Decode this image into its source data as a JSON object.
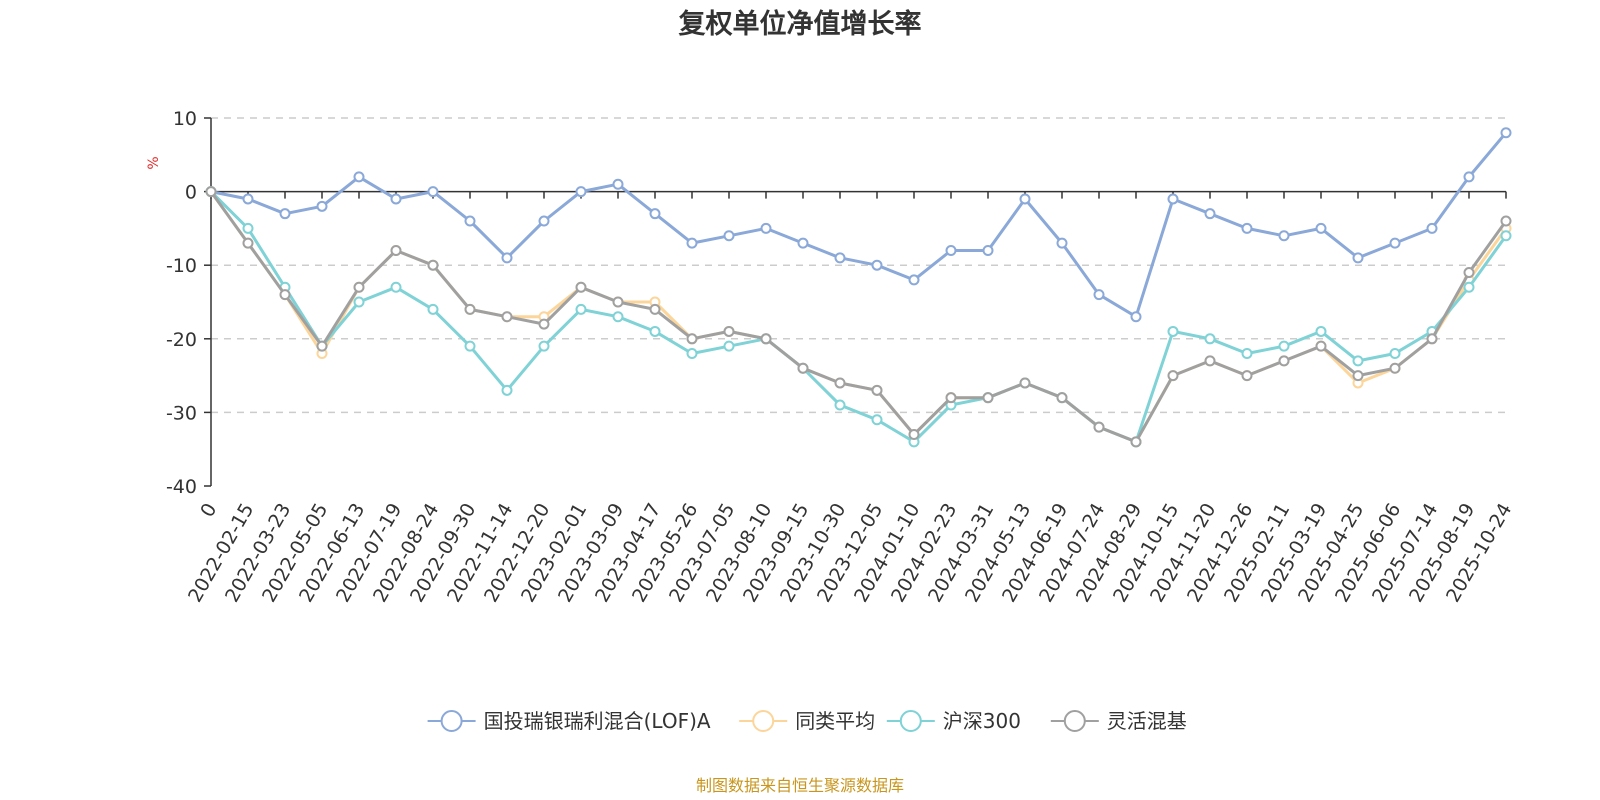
{
  "chart_data": {
    "type": "line",
    "title": "复权单位净值增长率",
    "ylabel": "%",
    "ylim": [
      -40,
      10
    ],
    "yticks": [
      10,
      0,
      -10,
      -20,
      -30,
      -40
    ],
    "xlabels": [
      "0",
      "2022-02-15",
      "2022-03-23",
      "2022-05-05",
      "2022-06-13",
      "2022-07-19",
      "2022-08-24",
      "2022-09-30",
      "2022-11-14",
      "2022-12-20",
      "2023-02-01",
      "2023-03-09",
      "2023-04-17",
      "2023-05-26",
      "2023-07-05",
      "2023-08-10",
      "2023-09-15",
      "2023-10-30",
      "2023-12-05",
      "2024-01-10",
      "2024-02-23",
      "2024-03-31",
      "2024-05-13",
      "2024-06-19",
      "2024-07-24",
      "2024-08-29",
      "2024-10-15",
      "2024-11-20",
      "2024-12-26",
      "2025-02-11",
      "2025-03-19",
      "2025-04-25",
      "2025-06-06",
      "2025-07-14",
      "2025-08-19",
      "2025-10-24"
    ],
    "grid": true,
    "legend_position": "bottom",
    "series": [
      {
        "name": "国投瑞银瑞利混合(LOF)A",
        "color": "#8aa8d8",
        "values": [
          0,
          -1,
          -3,
          -2,
          2,
          -1,
          0,
          -4,
          -9,
          -4,
          0,
          1,
          -3,
          -7,
          -6,
          -5,
          -7,
          -9,
          -10,
          -12,
          -8,
          -8,
          -1,
          -7,
          -14,
          -17,
          -1,
          -3,
          -5,
          -6,
          -5,
          -9,
          -7,
          -5,
          2,
          8
        ]
      },
      {
        "name": "同类平均",
        "color": "#fcd59a",
        "values": [
          0,
          -7,
          -14,
          -22,
          -13,
          -8,
          -10,
          -16,
          -17,
          -17,
          -13,
          -15,
          -15,
          -20,
          -19,
          -20,
          -24,
          -26,
          -27,
          -33,
          -28,
          -28,
          -26,
          -28,
          -32,
          -34,
          -25,
          -23,
          -25,
          -23,
          -21,
          -26,
          -24,
          -20,
          -12,
          -5
        ]
      },
      {
        "name": "沪深300",
        "color": "#7fd2d6",
        "values": [
          0,
          -5,
          -13,
          -21,
          -15,
          -13,
          -16,
          -21,
          -27,
          -21,
          -16,
          -17,
          -19,
          -22,
          -21,
          -20,
          -24,
          -29,
          -31,
          -34,
          -29,
          -28,
          -26,
          -28,
          -32,
          -34,
          -19,
          -20,
          -22,
          -21,
          -19,
          -23,
          -22,
          -19,
          -13,
          -6
        ]
      },
      {
        "name": "灵活混基",
        "color": "#a0a0a0",
        "values": [
          0,
          -7,
          -14,
          -21,
          -13,
          -8,
          -10,
          -16,
          -17,
          -18,
          -13,
          -15,
          -16,
          -20,
          -19,
          -20,
          -24,
          -26,
          -27,
          -33,
          -28,
          -28,
          -26,
          -28,
          -32,
          -34,
          -25,
          -23,
          -25,
          -23,
          -21,
          -25,
          -24,
          -20,
          -11,
          -4
        ]
      }
    ]
  },
  "footer": {
    "source": "制图数据来自恒生聚源数据库"
  }
}
